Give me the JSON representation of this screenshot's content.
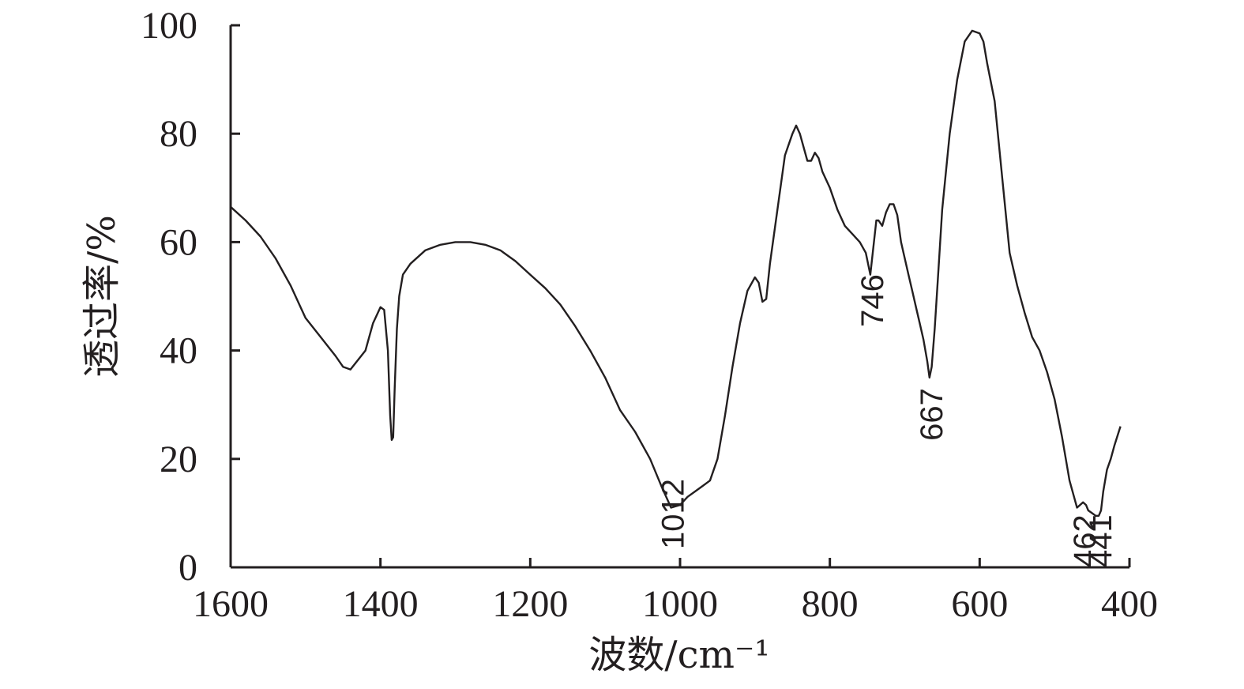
{
  "chart_data": {
    "type": "line",
    "xlabel": "波数/cm⁻¹",
    "ylabel": "透过率/%",
    "xlim": [
      1600,
      400
    ],
    "ylim": [
      0,
      100
    ],
    "xticks": [
      1600,
      1400,
      1200,
      1000,
      800,
      600,
      400
    ],
    "yticks": [
      0,
      20,
      40,
      60,
      80,
      100
    ],
    "grid": false,
    "annotations": [
      {
        "text": "1012",
        "x": 1012,
        "y": 11
      },
      {
        "text": "746",
        "x": 746,
        "y": 56
      },
      {
        "text": "667",
        "x": 667,
        "y": 35
      },
      {
        "text": "462",
        "x": 462,
        "y": 11
      },
      {
        "text": "441",
        "x": 441,
        "y": 9
      }
    ],
    "series": [
      {
        "x": [
          1600,
          1580,
          1560,
          1540,
          1520,
          1500,
          1480,
          1460,
          1450,
          1440,
          1420,
          1410,
          1400,
          1395,
          1390,
          1387,
          1385,
          1383,
          1381,
          1378,
          1375,
          1370,
          1360,
          1340,
          1320,
          1300,
          1280,
          1260,
          1240,
          1220,
          1200,
          1180,
          1160,
          1140,
          1120,
          1100,
          1080,
          1060,
          1040,
          1025,
          1012,
          1000,
          990,
          980,
          970,
          960,
          950,
          940,
          930,
          920,
          910,
          900,
          895,
          890,
          885,
          880,
          870,
          860,
          850,
          845,
          840,
          830,
          825,
          820,
          815,
          810,
          800,
          790,
          780,
          770,
          760,
          752,
          746,
          742,
          738,
          735,
          730,
          725,
          720,
          715,
          710,
          705,
          700,
          695,
          690,
          685,
          680,
          675,
          670,
          667,
          664,
          660,
          655,
          650,
          640,
          630,
          620,
          610,
          600,
          595,
          590,
          580,
          570,
          560,
          550,
          540,
          530,
          520,
          510,
          500,
          490,
          480,
          470,
          462,
          458,
          455,
          450,
          445,
          441,
          438,
          435,
          430,
          425,
          420,
          412
        ],
        "y": [
          66.5,
          64,
          61,
          57,
          52,
          46,
          42.5,
          39,
          37,
          36.5,
          40,
          45,
          48,
          47.5,
          40,
          28,
          23.5,
          24,
          33,
          44,
          50,
          54,
          56,
          58.5,
          59.5,
          60,
          60,
          59.5,
          58.5,
          56.5,
          54,
          51.5,
          48.5,
          44.5,
          40,
          35,
          29,
          25,
          20,
          15,
          11,
          11.5,
          13,
          14,
          15,
          16,
          20,
          28,
          37,
          45,
          51,
          53.5,
          52.5,
          49,
          49.5,
          56,
          66,
          76,
          80,
          81.5,
          80,
          75,
          75,
          76.5,
          75.5,
          73,
          70,
          66,
          63,
          61.5,
          60,
          58,
          54,
          59,
          64,
          64,
          63,
          65.5,
          67,
          67,
          65,
          60,
          57,
          54,
          51,
          48,
          45,
          42,
          38,
          35,
          37,
          44,
          55,
          66,
          80,
          90,
          97,
          99,
          98.5,
          97,
          93,
          86,
          72,
          58,
          52,
          47,
          42.5,
          40,
          36,
          31,
          24,
          16,
          11,
          12,
          11.5,
          10.5,
          10,
          9.5,
          9.5,
          10.5,
          14,
          18,
          20,
          22.5,
          26
        ]
      }
    ]
  }
}
